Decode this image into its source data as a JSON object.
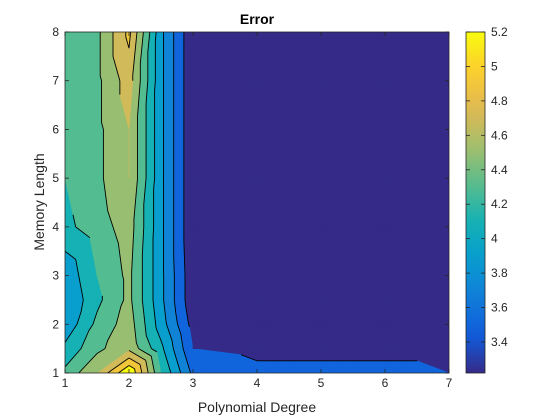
{
  "chart_data": {
    "type": "contour",
    "title": "Error",
    "xlabel": "Polynomial Degree",
    "ylabel": "Memory Length",
    "xlim": [
      1,
      7
    ],
    "ylim": [
      1,
      8
    ],
    "x_ticks": [
      "1",
      "2",
      "3",
      "4",
      "5",
      "6",
      "7"
    ],
    "y_ticks": [
      "1",
      "2",
      "3",
      "4",
      "5",
      "6",
      "7",
      "8"
    ],
    "x": [
      1,
      1.5,
      2,
      2.5,
      3,
      4,
      5,
      6,
      7
    ],
    "y": [
      1,
      1.5,
      2,
      2.5,
      3,
      4,
      5,
      6,
      7,
      8
    ],
    "z": [
      [
        4.25,
        4.6,
        5.2,
        4.2,
        3.55,
        3.45,
        3.45,
        3.45,
        3.4
      ],
      [
        4.05,
        4.35,
        4.55,
        4.05,
        3.4,
        3.35,
        3.35,
        3.35,
        3.35
      ],
      [
        3.85,
        4.25,
        4.5,
        3.9,
        3.32,
        3.28,
        3.28,
        3.28,
        3.28
      ],
      [
        3.8,
        4.15,
        4.45,
        3.85,
        3.25,
        3.25,
        3.25,
        3.25,
        3.25
      ],
      [
        3.85,
        4.2,
        4.45,
        3.85,
        3.25,
        3.25,
        3.25,
        3.25,
        3.25
      ],
      [
        4.15,
        4.3,
        4.5,
        3.85,
        3.22,
        3.22,
        3.22,
        3.22,
        3.22
      ],
      [
        4.2,
        4.35,
        4.6,
        3.85,
        3.22,
        3.22,
        3.22,
        3.22,
        3.22
      ],
      [
        4.2,
        4.35,
        4.6,
        3.85,
        3.22,
        3.22,
        3.22,
        3.22,
        3.22
      ],
      [
        4.2,
        4.35,
        4.7,
        3.85,
        3.22,
        3.22,
        3.22,
        3.22,
        3.22
      ],
      [
        4.25,
        4.35,
        4.85,
        3.85,
        3.22,
        3.22,
        3.22,
        3.22,
        3.22
      ]
    ],
    "levels": [
      3.4,
      3.6,
      3.8,
      4.0,
      4.2,
      4.4,
      4.6,
      4.8,
      5.0
    ],
    "colorbar": {
      "min": 3.22,
      "max": 5.2,
      "ticks": [
        3.4,
        3.6,
        3.8,
        4,
        4.2,
        4.4,
        4.6,
        4.8,
        5,
        5.2
      ],
      "tick_labels": [
        "3.4",
        "3.6",
        "3.8",
        "4",
        "4.2",
        "4.4",
        "4.6",
        "4.8",
        "5",
        "5.2"
      ],
      "colormap": "parula"
    },
    "grid": false,
    "legend": "none"
  }
}
